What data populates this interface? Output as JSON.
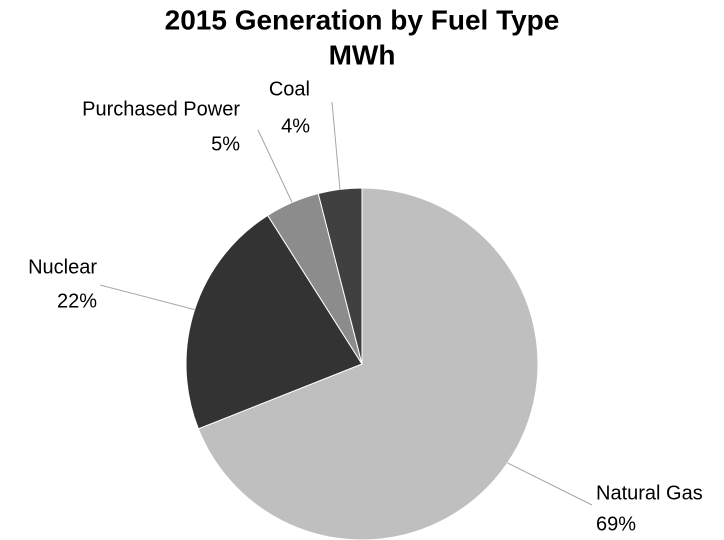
{
  "chart_data": {
    "type": "pie",
    "title": "2015 Generation by Fuel Type",
    "subtitle": "MWh",
    "categories": [
      "Natural Gas",
      "Nuclear",
      "Purchased Power",
      "Coal"
    ],
    "values": [
      69,
      22,
      5,
      4
    ],
    "value_labels": [
      "69%",
      "22%",
      "5%",
      "4%"
    ],
    "colors": [
      "#bfbfbf",
      "#333333",
      "#8c8c8c",
      "#404040"
    ]
  }
}
